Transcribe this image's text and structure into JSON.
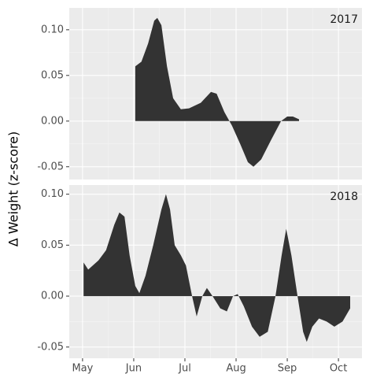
{
  "chart_data": [
    {
      "type": "area",
      "title": "2017",
      "ylabel": "Δ Weight (z-score)",
      "color": "#333333",
      "grid": true,
      "x": [
        6.03,
        6.15,
        6.28,
        6.4,
        6.46,
        6.54,
        6.65,
        6.77,
        6.92,
        7.08,
        7.31,
        7.51,
        7.62,
        7.77,
        7.92,
        8.08,
        8.23,
        8.34,
        8.49,
        8.69,
        8.88,
        9.0,
        9.11,
        9.23
      ],
      "values": [
        0.06,
        0.065,
        0.085,
        0.11,
        0.113,
        0.105,
        0.06,
        0.025,
        0.013,
        0.014,
        0.02,
        0.032,
        0.03,
        0.01,
        -0.005,
        -0.025,
        -0.045,
        -0.05,
        -0.042,
        -0.02,
        0.0,
        0.005,
        0.005,
        0.002
      ],
      "xlim": [
        4.74,
        10.46
      ],
      "xticks": [
        5,
        6,
        7,
        8,
        9,
        10
      ],
      "ylim": [
        -0.064,
        0.124
      ],
      "yticks": [
        {
          "value": -0.05,
          "label": "-0.05"
        },
        {
          "value": 0,
          "label": "0.00"
        },
        {
          "value": 0.05,
          "label": "0.05"
        },
        {
          "value": 0.1,
          "label": "0.10"
        }
      ]
    },
    {
      "type": "area",
      "title": "2018",
      "color": "#333333",
      "grid": true,
      "x": [
        5.02,
        5.11,
        5.31,
        5.46,
        5.62,
        5.72,
        5.82,
        5.92,
        6.03,
        6.11,
        6.23,
        6.38,
        6.54,
        6.63,
        6.71,
        6.8,
        6.92,
        7.02,
        7.14,
        7.23,
        7.34,
        7.43,
        7.54,
        7.69,
        7.82,
        7.94,
        8.03,
        8.15,
        8.31,
        8.46,
        8.62,
        8.77,
        8.89,
        8.98,
        9.08,
        9.2,
        9.31,
        9.38,
        9.49,
        9.62,
        9.77,
        9.92,
        10.08,
        10.23
      ],
      "values": [
        0.033,
        0.026,
        0.035,
        0.045,
        0.07,
        0.082,
        0.078,
        0.04,
        0.01,
        0.003,
        0.02,
        0.05,
        0.085,
        0.1,
        0.085,
        0.05,
        0.04,
        0.03,
        0.0,
        -0.02,
        0.0,
        0.008,
        0.0,
        -0.012,
        -0.015,
        0.0,
        0.002,
        -0.01,
        -0.03,
        -0.04,
        -0.035,
        0.0,
        0.04,
        0.066,
        0.04,
        0.0,
        -0.035,
        -0.045,
        -0.03,
        -0.022,
        -0.025,
        -0.03,
        -0.025,
        -0.012
      ],
      "xlim": [
        4.74,
        10.46
      ],
      "xticks": [
        {
          "value": 5,
          "label": "May"
        },
        {
          "value": 6,
          "label": "Jun"
        },
        {
          "value": 7,
          "label": "Jul"
        },
        {
          "value": 8,
          "label": "Aug"
        },
        {
          "value": 9,
          "label": "Sep"
        },
        {
          "value": 10,
          "label": "Oct"
        }
      ],
      "ylim": [
        -0.061,
        0.109
      ],
      "yticks": [
        {
          "value": -0.05,
          "label": "-0.05"
        },
        {
          "value": 0,
          "label": "0.00"
        },
        {
          "value": 0.05,
          "label": "0.05"
        },
        {
          "value": 0.1,
          "label": "0.10"
        }
      ]
    }
  ]
}
